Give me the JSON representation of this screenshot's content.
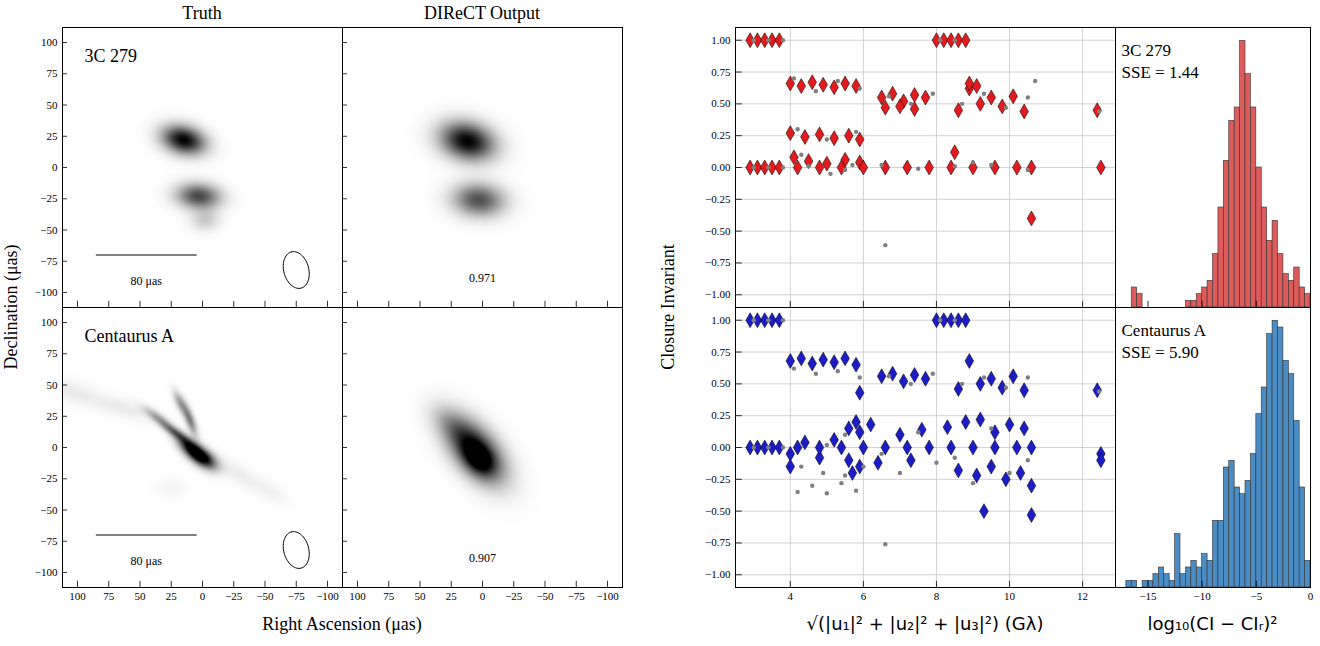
{
  "chart_data": [
    {
      "type": "image",
      "title": "Truth",
      "ylabel": "Declination (μas)",
      "xlim": [
        112,
        -112
      ],
      "ylim": [
        -112,
        112
      ],
      "xticks": [
        100,
        75,
        50,
        25,
        0,
        -25,
        -50,
        -75,
        -100
      ],
      "yticks": [
        -100,
        -75,
        -50,
        -25,
        0,
        25,
        50,
        75,
        100
      ],
      "tick_labels": "y",
      "annotations": [
        "3C 279"
      ],
      "scale_bar": {
        "x": 85,
        "y": -70,
        "length": 80,
        "label": "80 μas"
      },
      "beam": {
        "x": -75,
        "y": -82,
        "major": 30,
        "minor": 20,
        "angle": 75
      },
      "components": [
        {
          "x": 15,
          "y": 22,
          "sigma_major": 12,
          "sigma_minor": 7.5,
          "angle": 15,
          "amp": 1
        },
        {
          "x": 3,
          "y": -23,
          "sigma_major": 12,
          "sigma_minor": 7,
          "angle": 5,
          "amp": 0.72
        },
        {
          "x": -2,
          "y": -42,
          "sigma_major": 8,
          "sigma_minor": 6,
          "angle": 0,
          "amp": 0.2
        }
      ]
    },
    {
      "type": "image",
      "title": "DIReCT Output",
      "xlim": [
        112,
        -112
      ],
      "ylim": [
        -112,
        112
      ],
      "xticks": [
        100,
        75,
        50,
        25,
        0,
        -25,
        -50,
        -75,
        -100
      ],
      "yticks": [
        -100,
        -75,
        -50,
        -25,
        0,
        25,
        50,
        75,
        100
      ],
      "tick_labels": false,
      "score": 0.971,
      "components": [
        {
          "x": 12,
          "y": 21,
          "sigma_major": 15,
          "sigma_minor": 10,
          "angle": 15,
          "amp": 0.95
        },
        {
          "x": 3,
          "y": -26,
          "sigma_major": 14,
          "sigma_minor": 9,
          "angle": 5,
          "amp": 0.65
        }
      ]
    },
    {
      "type": "image",
      "xlabel": "Right Ascension (μas)",
      "xlim": [
        112,
        -112
      ],
      "ylim": [
        -112,
        112
      ],
      "xticks": [
        100,
        75,
        50,
        25,
        0,
        -25,
        -50,
        -75,
        -100
      ],
      "yticks": [
        -100,
        -75,
        -50,
        -25,
        0,
        25,
        50,
        75,
        100
      ],
      "tick_labels": true,
      "annotations": [
        "Centaurus A"
      ],
      "scale_bar": {
        "x": 85,
        "y": -70,
        "length": 80,
        "label": "80 μas"
      },
      "beam": {
        "x": -75,
        "y": -82,
        "major": 30,
        "minor": 20,
        "angle": 75
      },
      "components": [
        {
          "x": 0,
          "y": -8,
          "sigma_major": 9,
          "sigma_minor": 4.5,
          "angle": 35,
          "amp": 1
        },
        {
          "x": 10,
          "y": 0,
          "sigma_major": 9,
          "sigma_minor": 4,
          "angle": 40,
          "amp": 0.75
        },
        {
          "x": 22,
          "y": 12,
          "sigma_major": 10,
          "sigma_minor": 2.5,
          "angle": 35,
          "amp": 0.55
        },
        {
          "x": 36,
          "y": 24,
          "sigma_major": 9,
          "sigma_minor": 2.5,
          "angle": 35,
          "amp": 0.3
        },
        {
          "x": 10,
          "y": 22,
          "sigma_major": 9,
          "sigma_minor": 2.5,
          "angle": 70,
          "amp": 0.5
        },
        {
          "x": 18,
          "y": 36,
          "sigma_major": 7,
          "sigma_minor": 2.5,
          "angle": 65,
          "amp": 0.35
        },
        {
          "x": 65,
          "y": 32,
          "sigma_major": 22,
          "sigma_minor": 5,
          "angle": 15,
          "amp": 0.08
        },
        {
          "x": 105,
          "y": 45,
          "sigma_major": 14,
          "sigma_minor": 6,
          "angle": 15,
          "amp": 0.07
        },
        {
          "x": -30,
          "y": -22,
          "sigma_major": 14,
          "sigma_minor": 5,
          "angle": 35,
          "amp": 0.07
        },
        {
          "x": -55,
          "y": -35,
          "sigma_major": 10,
          "sigma_minor": 5,
          "angle": 35,
          "amp": 0.05
        },
        {
          "x": 25,
          "y": -32,
          "sigma_major": 8,
          "sigma_minor": 6,
          "angle": 0,
          "amp": 0.04
        }
      ]
    },
    {
      "type": "image",
      "xlim": [
        112,
        -112
      ],
      "ylim": [
        -112,
        112
      ],
      "xticks": [
        100,
        75,
        50,
        25,
        0,
        -25,
        -50,
        -75,
        -100
      ],
      "yticks": [
        -100,
        -75,
        -50,
        -25,
        0,
        25,
        50,
        75,
        100
      ],
      "tick_labels": "x",
      "score": 0.907,
      "components": [
        {
          "x": 5,
          "y": -3,
          "sigma_major": 20,
          "sigma_minor": 11,
          "angle": 50,
          "amp": 0.9
        },
        {
          "x": 3,
          "y": -10,
          "sigma_major": 10,
          "sigma_minor": 7,
          "angle": 50,
          "amp": 0.4
        },
        {
          "x": 25,
          "y": 18,
          "sigma_major": 14,
          "sigma_minor": 8,
          "angle": 45,
          "amp": 0.2
        }
      ]
    },
    {
      "type": "scatter",
      "ylabel": "Closure Invariant",
      "xlim": [
        2.5,
        12.9
      ],
      "ylim": [
        -1.1,
        1.1
      ],
      "xticks": [
        4,
        6,
        8,
        10,
        12
      ],
      "yticks": [
        {
          "value": -1,
          "label": "−1.00"
        },
        {
          "value": -0.75,
          "label": "−0.75"
        },
        {
          "value": -0.5,
          "label": "−0.50"
        },
        {
          "value": -0.25,
          "label": "−0.25"
        },
        {
          "value": 0,
          "label": "0.00"
        },
        {
          "value": 0.25,
          "label": "0.25"
        },
        {
          "value": 0.5,
          "label": "0.50"
        },
        {
          "value": 0.75,
          "label": "0.75"
        },
        {
          "value": 1,
          "label": "1.00"
        }
      ],
      "grid": true,
      "tick_labels": "y",
      "series": [
        {
          "color": "#e41a1c",
          "marker": "diamond",
          "x": [
            2.9,
            3.1,
            3.3,
            3.5,
            3.7,
            8.0,
            8.2,
            8.4,
            8.6,
            8.8,
            2.9,
            3.1,
            3.3,
            3.5,
            3.7,
            4.0,
            4.3,
            4.6,
            4.9,
            5.2,
            5.5,
            5.8,
            4.0,
            4.4,
            4.8,
            5.2,
            5.6,
            5.9,
            4.1,
            4.5,
            5.0,
            5.5,
            5.9,
            4.2,
            4.8,
            5.4,
            6.0,
            6.6,
            7.2,
            7.8,
            8.4,
            9.0,
            9.6,
            10.2,
            10.6,
            6.5,
            6.8,
            7.1,
            7.4,
            7.7,
            6.6,
            7.0,
            7.4,
            8.6,
            8.9,
            9.2,
            9.5,
            9.8,
            10.1,
            10.4,
            8.9,
            9.1,
            12.4,
            12.5,
            10.6,
            8.5
          ],
          "y": [
            1,
            1,
            1,
            1,
            1,
            1,
            1,
            1,
            1,
            1,
            0,
            0,
            0,
            0,
            0,
            0.66,
            0.64,
            0.67,
            0.65,
            0.63,
            0.66,
            0.64,
            0.27,
            0.24,
            0.26,
            0.23,
            0.25,
            0.22,
            0.08,
            0.05,
            0.03,
            0.06,
            0.04,
            0,
            0,
            0,
            0,
            0,
            0,
            0,
            0,
            0,
            0,
            0,
            0,
            0.55,
            0.58,
            0.52,
            0.57,
            0.55,
            0.47,
            0.48,
            0.46,
            0.45,
            0.62,
            0.5,
            0.55,
            0.48,
            0.56,
            0.44,
            0.66,
            0.64,
            0.45,
            0,
            -0.4,
            0.12
          ]
        },
        {
          "color": "#808080",
          "marker": "circle",
          "x": [
            3.0,
            3.4,
            3.8,
            8.1,
            8.5,
            3.0,
            3.4,
            3.8,
            4.1,
            4.7,
            5.3,
            5.9,
            4.2,
            5.0,
            5.8,
            4.3,
            5.1,
            5.7,
            4.5,
            5.5,
            6.5,
            7.5,
            8.5,
            9.5,
            10.5,
            6.7,
            7.3,
            7.9,
            8.7,
            9.3,
            9.9,
            10.5,
            12.45,
            6.6,
            10.7,
            9.0
          ],
          "y": [
            1,
            1,
            1,
            1,
            1,
            0,
            0,
            0,
            0.7,
            0.6,
            0.68,
            0.62,
            0.3,
            0.22,
            0.28,
            0.1,
            -0.05,
            0.02,
            0.01,
            -0.02,
            0.02,
            -0.01,
            0.01,
            0.02,
            -0.02,
            0.56,
            0.5,
            0.58,
            0.5,
            0.58,
            0.47,
            0.55,
            0.44,
            -0.61,
            0.68,
            0.04
          ]
        }
      ]
    },
    {
      "type": "histogram",
      "xlim": [
        -18,
        0
      ],
      "xticks": [
        -15,
        -10,
        -5,
        0
      ],
      "ylim": [
        0,
        42
      ],
      "tick_labels": false,
      "color": "#de5b5b",
      "annotations": [
        "3C 279",
        "SSE = 1.44"
      ],
      "bins": [
        -17,
        -16.5,
        -16,
        -15.5,
        -15,
        -14.5,
        -14,
        -13.5,
        -13,
        -12.5,
        -12,
        -11.5,
        -11,
        -10.5,
        -10,
        -9.5,
        -9,
        -8.5,
        -8,
        -7.5,
        -7,
        -6.5,
        -6,
        -5.5,
        -5,
        -4.5,
        -4,
        -3.5,
        -3,
        -2.5,
        -2,
        -1.5,
        -1,
        -0.5,
        0
      ],
      "counts": [
        0,
        3,
        2,
        0,
        0,
        0,
        0,
        0,
        0,
        0,
        0,
        1,
        1,
        2,
        3,
        4,
        8,
        15,
        22,
        28,
        30,
        40,
        35,
        30,
        21,
        15,
        10,
        13,
        8,
        5,
        4,
        6,
        3,
        2
      ]
    },
    {
      "type": "scatter",
      "xlabel": "√(|u₁|² + |u₂|² + |u₃|²) (Gλ)",
      "xlim": [
        2.5,
        12.9
      ],
      "ylim": [
        -1.1,
        1.1
      ],
      "xticks": [
        4,
        6,
        8,
        10,
        12
      ],
      "yticks": [
        {
          "value": -1,
          "label": "−1.00"
        },
        {
          "value": -0.75,
          "label": "−0.75"
        },
        {
          "value": -0.5,
          "label": "−0.50"
        },
        {
          "value": -0.25,
          "label": "−0.25"
        },
        {
          "value": 0,
          "label": "0.00"
        },
        {
          "value": 0.25,
          "label": "0.25"
        },
        {
          "value": 0.5,
          "label": "0.50"
        },
        {
          "value": 0.75,
          "label": "0.75"
        },
        {
          "value": 1,
          "label": "1.00"
        }
      ],
      "grid": true,
      "tick_labels": true,
      "series": [
        {
          "color": "#1c1cc8",
          "marker": "diamond",
          "x": [
            2.9,
            3.1,
            3.3,
            3.5,
            3.7,
            8.0,
            8.2,
            8.4,
            8.6,
            8.8,
            2.9,
            3.1,
            3.3,
            3.5,
            3.7,
            4.0,
            4.3,
            4.6,
            4.9,
            5.2,
            5.5,
            5.8,
            4.0,
            4.4,
            4.8,
            5.2,
            5.6,
            4.2,
            4.8,
            5.4,
            6.0,
            6.6,
            7.2,
            7.8,
            8.4,
            9.0,
            9.6,
            10.2,
            10.6,
            5.6,
            5.8,
            5.9,
            6.2,
            7.0,
            7.6,
            8.3,
            8.8,
            9.2,
            9.6,
            10.0,
            10.4,
            5.7,
            5.9,
            6.4,
            7.3,
            8.6,
            9.1,
            9.5,
            9.9,
            10.3,
            10.6,
            6.5,
            6.8,
            7.1,
            7.4,
            7.7,
            8.6,
            8.9,
            9.2,
            9.5,
            9.8,
            10.1,
            10.4,
            12.4,
            12.5,
            12.5,
            9.3,
            10.6,
            5.9,
            4.0
          ],
          "y": [
            1,
            1,
            1,
            1,
            1,
            1,
            1,
            1,
            1,
            1,
            0,
            0,
            0,
            0,
            0,
            0.68,
            0.7,
            0.66,
            0.69,
            0.67,
            0.7,
            0.65,
            -0.05,
            0.04,
            -0.08,
            0.06,
            -0.1,
            0,
            0,
            0,
            0,
            0,
            0,
            0,
            0,
            0,
            0,
            0,
            0,
            0.15,
            0.2,
            0.12,
            0.18,
            0.1,
            0.14,
            0.16,
            0.2,
            0.22,
            0.12,
            0.18,
            0.15,
            -0.2,
            -0.15,
            -0.12,
            -0.1,
            -0.18,
            -0.22,
            -0.15,
            -0.25,
            -0.2,
            -0.3,
            0.56,
            0.58,
            0.52,
            0.57,
            0.54,
            0.46,
            0.68,
            0.5,
            0.54,
            0.47,
            0.56,
            0.45,
            0.45,
            -0.05,
            -0.1,
            -0.5,
            -0.53,
            0.43,
            -0.15
          ]
        },
        {
          "color": "#808080",
          "marker": "circle",
          "x": [
            3.0,
            3.4,
            3.8,
            8.1,
            8.5,
            3.0,
            3.4,
            3.8,
            4.1,
            4.7,
            5.3,
            5.9,
            4.2,
            4.6,
            5.0,
            5.4,
            5.8,
            4.3,
            4.9,
            5.5,
            5.0,
            5.5,
            6.5,
            7.5,
            8.5,
            9.5,
            10.5,
            6.0,
            7.0,
            8.0,
            9.0,
            10.0,
            6.7,
            7.3,
            7.9,
            8.7,
            9.3,
            9.9,
            10.5,
            12.45,
            6.6
          ],
          "y": [
            1,
            1,
            1,
            1,
            1,
            0,
            0,
            0,
            0.62,
            0.58,
            0.6,
            0.55,
            -0.35,
            -0.3,
            -0.36,
            -0.28,
            -0.34,
            -0.15,
            -0.2,
            -0.22,
            0.02,
            0.1,
            -0.05,
            0.12,
            -0.08,
            0.15,
            -0.1,
            -0.15,
            -0.2,
            -0.12,
            -0.28,
            -0.2,
            0.56,
            0.5,
            0.58,
            0.5,
            0.55,
            0.47,
            0.55,
            0.44,
            -0.76
          ]
        }
      ]
    },
    {
      "type": "histogram",
      "xlabel": "log₁₀(CI − CIᵣ)²",
      "xlim": [
        -18,
        0
      ],
      "xticks": [
        -15,
        -10,
        -5,
        0
      ],
      "ylim": [
        0,
        42
      ],
      "tick_labels": "x",
      "color": "#4a8cc4",
      "annotations": [
        "Centaurus A",
        "SSE = 5.90"
      ],
      "bins": [
        -17,
        -16.5,
        -16,
        -15.5,
        -15,
        -14.5,
        -14,
        -13.5,
        -13,
        -12.5,
        -12,
        -11.5,
        -11,
        -10.5,
        -10,
        -9.5,
        -9,
        -8.5,
        -8,
        -7.5,
        -7,
        -6.5,
        -6,
        -5.5,
        -5,
        -4.5,
        -4,
        -3.5,
        -3,
        -2.5,
        -2,
        -1.5,
        -1,
        -0.5,
        0
      ],
      "counts": [
        1,
        1,
        0,
        1,
        1,
        2,
        3,
        2,
        1,
        8,
        2,
        3,
        4,
        3,
        5,
        4,
        10,
        10,
        18,
        19,
        15,
        14,
        16,
        20,
        26,
        30,
        38,
        40,
        39,
        34,
        32,
        25,
        15,
        4
      ]
    }
  ]
}
